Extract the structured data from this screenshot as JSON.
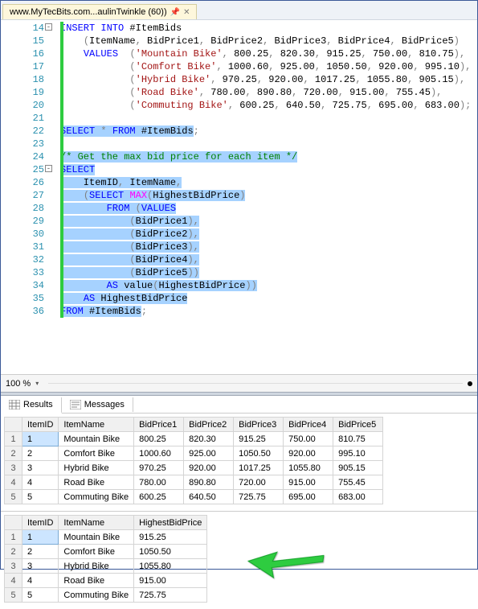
{
  "tab": {
    "title": "www.MyTecBits.com...aulinTwinkle (60))",
    "pin": "📌",
    "close": "✕"
  },
  "gutter": {
    "start": 14,
    "end": 36
  },
  "code": [
    {
      "n": 14,
      "bar": true,
      "box": "-",
      "segs": [
        {
          "t": "INSERT INTO",
          "c": "kw"
        },
        {
          "t": " #ItemBids"
        }
      ]
    },
    {
      "n": 15,
      "bar": true,
      "segs": [
        {
          "t": "    "
        },
        {
          "t": "(",
          "c": "gray"
        },
        {
          "t": "ItemName"
        },
        {
          "t": ",",
          "c": "gray"
        },
        {
          "t": " BidPrice1"
        },
        {
          "t": ",",
          "c": "gray"
        },
        {
          "t": " BidPrice2"
        },
        {
          "t": ",",
          "c": "gray"
        },
        {
          "t": " BidPrice3"
        },
        {
          "t": ",",
          "c": "gray"
        },
        {
          "t": " BidPrice4"
        },
        {
          "t": ",",
          "c": "gray"
        },
        {
          "t": " BidPrice5"
        },
        {
          "t": ")",
          "c": "gray"
        }
      ]
    },
    {
      "n": 16,
      "bar": true,
      "segs": [
        {
          "t": "    "
        },
        {
          "t": "VALUES",
          "c": "kw"
        },
        {
          "t": "  "
        },
        {
          "t": "(",
          "c": "gray"
        },
        {
          "t": "'Mountain Bike'",
          "c": "str"
        },
        {
          "t": ",",
          "c": "gray"
        },
        {
          "t": " 800.25"
        },
        {
          "t": ",",
          "c": "gray"
        },
        {
          "t": " 820.30"
        },
        {
          "t": ",",
          "c": "gray"
        },
        {
          "t": " 915.25"
        },
        {
          "t": ",",
          "c": "gray"
        },
        {
          "t": " 750.00"
        },
        {
          "t": ",",
          "c": "gray"
        },
        {
          "t": " 810.75"
        },
        {
          "t": "),",
          "c": "gray"
        }
      ]
    },
    {
      "n": 17,
      "bar": true,
      "segs": [
        {
          "t": "            "
        },
        {
          "t": "(",
          "c": "gray"
        },
        {
          "t": "'Comfort Bike'",
          "c": "str"
        },
        {
          "t": ",",
          "c": "gray"
        },
        {
          "t": " 1000.60"
        },
        {
          "t": ",",
          "c": "gray"
        },
        {
          "t": " 925.00"
        },
        {
          "t": ",",
          "c": "gray"
        },
        {
          "t": " 1050.50"
        },
        {
          "t": ",",
          "c": "gray"
        },
        {
          "t": " 920.00"
        },
        {
          "t": ",",
          "c": "gray"
        },
        {
          "t": " 995.10"
        },
        {
          "t": "),",
          "c": "gray"
        }
      ]
    },
    {
      "n": 18,
      "bar": true,
      "segs": [
        {
          "t": "            "
        },
        {
          "t": "(",
          "c": "gray"
        },
        {
          "t": "'Hybrid Bike'",
          "c": "str"
        },
        {
          "t": ",",
          "c": "gray"
        },
        {
          "t": " 970.25"
        },
        {
          "t": ",",
          "c": "gray"
        },
        {
          "t": " 920.00"
        },
        {
          "t": ",",
          "c": "gray"
        },
        {
          "t": " 1017.25"
        },
        {
          "t": ",",
          "c": "gray"
        },
        {
          "t": " 1055.80"
        },
        {
          "t": ",",
          "c": "gray"
        },
        {
          "t": " 905.15"
        },
        {
          "t": "),",
          "c": "gray"
        }
      ]
    },
    {
      "n": 19,
      "bar": true,
      "segs": [
        {
          "t": "            "
        },
        {
          "t": "(",
          "c": "gray"
        },
        {
          "t": "'Road Bike'",
          "c": "str"
        },
        {
          "t": ",",
          "c": "gray"
        },
        {
          "t": " 780.00"
        },
        {
          "t": ",",
          "c": "gray"
        },
        {
          "t": " 890.80"
        },
        {
          "t": ",",
          "c": "gray"
        },
        {
          "t": " 720.00"
        },
        {
          "t": ",",
          "c": "gray"
        },
        {
          "t": " 915.00"
        },
        {
          "t": ",",
          "c": "gray"
        },
        {
          "t": " 755.45"
        },
        {
          "t": "),",
          "c": "gray"
        }
      ]
    },
    {
      "n": 20,
      "bar": true,
      "segs": [
        {
          "t": "            "
        },
        {
          "t": "(",
          "c": "gray"
        },
        {
          "t": "'Commuting Bike'",
          "c": "str"
        },
        {
          "t": ",",
          "c": "gray"
        },
        {
          "t": " 600.25"
        },
        {
          "t": ",",
          "c": "gray"
        },
        {
          "t": " 640.50"
        },
        {
          "t": ",",
          "c": "gray"
        },
        {
          "t": " 725.75"
        },
        {
          "t": ",",
          "c": "gray"
        },
        {
          "t": " 695.00"
        },
        {
          "t": ",",
          "c": "gray"
        },
        {
          "t": " 683.00"
        },
        {
          "t": ");",
          "c": "gray"
        }
      ]
    },
    {
      "n": 21,
      "bar": true,
      "segs": [
        {
          "t": " "
        }
      ]
    },
    {
      "n": 22,
      "bar": true,
      "hl": true,
      "segs": [
        {
          "t": "SELECT",
          "c": "kw"
        },
        {
          "t": " "
        },
        {
          "t": "*",
          "c": "star"
        },
        {
          "t": " "
        },
        {
          "t": "FROM",
          "c": "kw"
        },
        {
          "t": " #ItemBids"
        },
        {
          "t": ";",
          "c": "gray",
          "nohl": true
        }
      ]
    },
    {
      "n": 23,
      "bar": true,
      "segs": [
        {
          "t": " "
        }
      ]
    },
    {
      "n": 24,
      "bar": true,
      "hl": true,
      "segs": [
        {
          "t": "/* Get the max bid price for each item */",
          "c": "comment"
        }
      ]
    },
    {
      "n": 25,
      "bar": true,
      "box": "-",
      "hl": true,
      "segs": [
        {
          "t": "SELECT",
          "c": "kw"
        }
      ]
    },
    {
      "n": 26,
      "bar": true,
      "hl": true,
      "segs": [
        {
          "t": "    ItemID"
        },
        {
          "t": ",",
          "c": "gray"
        },
        {
          "t": " ItemName"
        },
        {
          "t": ",",
          "c": "gray"
        }
      ]
    },
    {
      "n": 27,
      "bar": true,
      "hl": true,
      "segs": [
        {
          "t": "    "
        },
        {
          "t": "(",
          "c": "gray"
        },
        {
          "t": "SELECT",
          "c": "kw"
        },
        {
          "t": " "
        },
        {
          "t": "MAX",
          "c": "func"
        },
        {
          "t": "(",
          "c": "gray"
        },
        {
          "t": "HighestBidPrice"
        },
        {
          "t": ")",
          "c": "gray"
        }
      ]
    },
    {
      "n": 28,
      "bar": true,
      "hl": true,
      "segs": [
        {
          "t": "        "
        },
        {
          "t": "FROM",
          "c": "kw"
        },
        {
          "t": " "
        },
        {
          "t": "(",
          "c": "gray"
        },
        {
          "t": "VALUES",
          "c": "kw"
        }
      ]
    },
    {
      "n": 29,
      "bar": true,
      "hl": true,
      "segs": [
        {
          "t": "            "
        },
        {
          "t": "(",
          "c": "gray"
        },
        {
          "t": "BidPrice1"
        },
        {
          "t": "),",
          "c": "gray"
        }
      ]
    },
    {
      "n": 30,
      "bar": true,
      "hl": true,
      "segs": [
        {
          "t": "            "
        },
        {
          "t": "(",
          "c": "gray"
        },
        {
          "t": "BidPrice2"
        },
        {
          "t": "),",
          "c": "gray"
        }
      ]
    },
    {
      "n": 31,
      "bar": true,
      "hl": true,
      "segs": [
        {
          "t": "            "
        },
        {
          "t": "(",
          "c": "gray"
        },
        {
          "t": "BidPrice3"
        },
        {
          "t": "),",
          "c": "gray"
        }
      ]
    },
    {
      "n": 32,
      "bar": true,
      "hl": true,
      "segs": [
        {
          "t": "            "
        },
        {
          "t": "(",
          "c": "gray"
        },
        {
          "t": "BidPrice4"
        },
        {
          "t": "),",
          "c": "gray"
        }
      ]
    },
    {
      "n": 33,
      "bar": true,
      "hl": true,
      "segs": [
        {
          "t": "            "
        },
        {
          "t": "(",
          "c": "gray"
        },
        {
          "t": "BidPrice5"
        },
        {
          "t": "))",
          "c": "gray"
        }
      ]
    },
    {
      "n": 34,
      "bar": true,
      "hl": true,
      "segs": [
        {
          "t": "        "
        },
        {
          "t": "AS",
          "c": "kw"
        },
        {
          "t": " value"
        },
        {
          "t": "(",
          "c": "gray"
        },
        {
          "t": "HighestBidPrice"
        },
        {
          "t": "))",
          "c": "gray"
        }
      ]
    },
    {
      "n": 35,
      "bar": true,
      "hl": true,
      "segs": [
        {
          "t": "    "
        },
        {
          "t": "AS",
          "c": "kw"
        },
        {
          "t": " HighestBidPrice"
        }
      ]
    },
    {
      "n": 36,
      "bar": true,
      "segs": [
        {
          "t": "FROM",
          "c": "kw",
          "hl": true
        },
        {
          "t": " #ItemBids",
          "hl": true
        },
        {
          "t": ";",
          "c": "gray"
        }
      ]
    }
  ],
  "zoom": {
    "value": "100 %"
  },
  "tabs": {
    "results": "Results",
    "messages": "Messages"
  },
  "grid1": {
    "cols": [
      "ItemID",
      "ItemName",
      "BidPrice1",
      "BidPrice2",
      "BidPrice3",
      "BidPrice4",
      "BidPrice5"
    ],
    "rows": [
      [
        "1",
        "Mountain Bike",
        "800.25",
        "820.30",
        "915.25",
        "750.00",
        "810.75"
      ],
      [
        "2",
        "Comfort Bike",
        "1000.60",
        "925.00",
        "1050.50",
        "920.00",
        "995.10"
      ],
      [
        "3",
        "Hybrid Bike",
        "970.25",
        "920.00",
        "1017.25",
        "1055.80",
        "905.15"
      ],
      [
        "4",
        "Road Bike",
        "780.00",
        "890.80",
        "720.00",
        "915.00",
        "755.45"
      ],
      [
        "5",
        "Commuting Bike",
        "600.25",
        "640.50",
        "725.75",
        "695.00",
        "683.00"
      ]
    ]
  },
  "grid2": {
    "cols": [
      "ItemID",
      "ItemName",
      "HighestBidPrice"
    ],
    "rows": [
      [
        "1",
        "Mountain Bike",
        "915.25"
      ],
      [
        "2",
        "Comfort Bike",
        "1050.50"
      ],
      [
        "3",
        "Hybrid Bike",
        "1055.80"
      ],
      [
        "4",
        "Road Bike",
        "915.00"
      ],
      [
        "5",
        "Commuting Bike",
        "725.75"
      ]
    ]
  },
  "colwidths1": [
    44,
    90,
    62,
    62,
    62,
    62,
    62
  ],
  "colwidths2": [
    44,
    90,
    90
  ],
  "arrow": {
    "color": "#2ecc40"
  }
}
